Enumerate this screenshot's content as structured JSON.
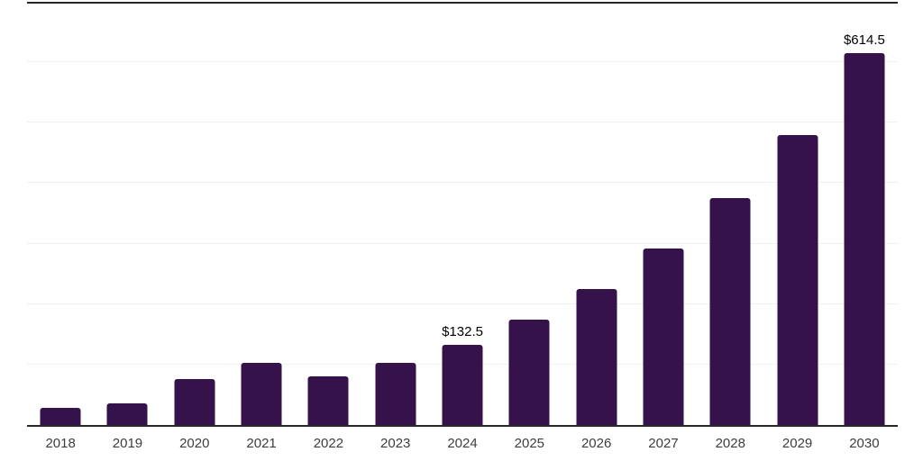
{
  "chart": {
    "background": "#ffffff",
    "bar_color": "#35124a",
    "gridline_color": "#f0f0f0",
    "rule_color": "#262626",
    "tick_label_color": "#3d3d3d",
    "data_label_color": "#000000"
  },
  "chart_data": {
    "type": "bar",
    "title": "",
    "xlabel": "",
    "ylabel": "",
    "categories": [
      "2018",
      "2019",
      "2020",
      "2021",
      "2022",
      "2023",
      "2024",
      "2025",
      "2026",
      "2027",
      "2028",
      "2029",
      "2030"
    ],
    "values": [
      28.3,
      35.6,
      75.9,
      102.5,
      79.9,
      102.2,
      132.5,
      175.0,
      224.5,
      291.5,
      376.0,
      479.0,
      614.5
    ],
    "data_labels": [
      "",
      "",
      "",
      "",
      "",
      "",
      "$132.5",
      "",
      "",
      "",
      "",
      "",
      "$614.5"
    ],
    "ylim": [
      0,
      700
    ],
    "gridline_step": 100,
    "grid": "horizontal-light",
    "legend": "none",
    "y_axis_tick_labels": "none"
  }
}
